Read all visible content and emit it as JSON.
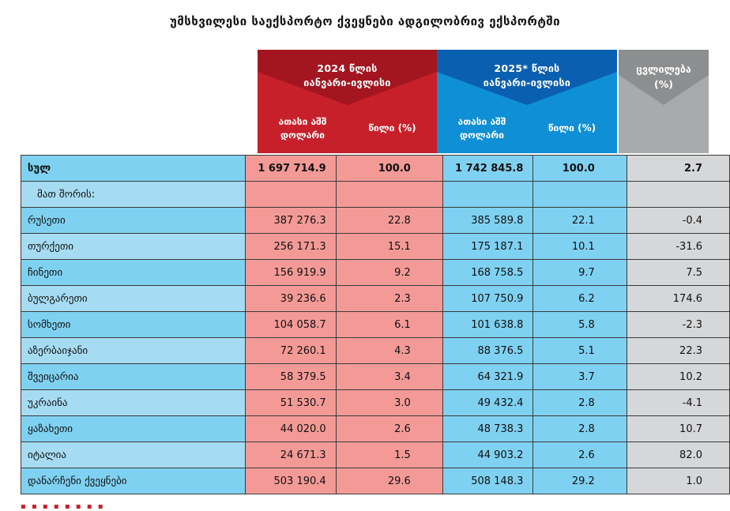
{
  "title": "უმსხვილესი საექსპორტო ქვეყნები ადგილობრივ ექსპორტში",
  "header": {
    "period_2024": [
      "2024 წლის",
      "იანვარი-ივლისი"
    ],
    "period_2025": [
      "2025* წლის",
      "იანვარი-ივლისი"
    ],
    "value_label": [
      "ათასი აშშ",
      "დოლარი"
    ],
    "share_label": "წილი (%)",
    "change_label": [
      "ცვლილება",
      "(%)"
    ]
  },
  "colors": {
    "red_header": "#c8202a",
    "blue_header": "#0f8fd6",
    "gray_header": "#a9aaac",
    "red_cells": "#f39a97",
    "blue_cells": "#7fd1f1",
    "gray_cells": "#d6d7d9"
  },
  "rows": [
    {
      "name": "სულ",
      "v2024": "1 697 714.9",
      "s2024": "100.0",
      "v2025": "1 742 845.8",
      "s2025": "100.0",
      "change": "2.7"
    },
    {
      "name": "მათ შორის:",
      "v2024": "",
      "s2024": "",
      "v2025": "",
      "s2025": "",
      "change": ""
    },
    {
      "name": "რუსეთი",
      "v2024": "387 276.3",
      "s2024": "22.8",
      "v2025": "385 589.8",
      "s2025": "22.1",
      "change": "-0.4"
    },
    {
      "name": "თურქეთი",
      "v2024": "256 171.3",
      "s2024": "15.1",
      "v2025": "175 187.1",
      "s2025": "10.1",
      "change": "-31.6"
    },
    {
      "name": "ჩინეთი",
      "v2024": "156 919.9",
      "s2024": "9.2",
      "v2025": "168 758.5",
      "s2025": "9.7",
      "change": "7.5"
    },
    {
      "name": "ბულგარეთი",
      "v2024": "39 236.6",
      "s2024": "2.3",
      "v2025": "107 750.9",
      "s2025": "6.2",
      "change": "174.6"
    },
    {
      "name": "სომხეთი",
      "v2024": "104 058.7",
      "s2024": "6.1",
      "v2025": "101 638.8",
      "s2025": "5.8",
      "change": "-2.3"
    },
    {
      "name": "აზერბაიჯანი",
      "v2024": "72 260.1",
      "s2024": "4.3",
      "v2025": "88 376.5",
      "s2025": "5.1",
      "change": "22.3"
    },
    {
      "name": "შვეიცარია",
      "v2024": "58 379.5",
      "s2024": "3.4",
      "v2025": "64 321.9",
      "s2025": "3.7",
      "change": "10.2"
    },
    {
      "name": "უკრაინა",
      "v2024": "51 530.7",
      "s2024": "3.0",
      "v2025": "49 432.4",
      "s2025": "2.8",
      "change": "-4.1"
    },
    {
      "name": "ყაზახეთი",
      "v2024": "44 020.0",
      "s2024": "2.6",
      "v2025": "48 738.3",
      "s2025": "2.8",
      "change": "10.7"
    },
    {
      "name": "იტალია",
      "v2024": "24 671.3",
      "s2024": "1.5",
      "v2025": "44 903.2",
      "s2025": "2.6",
      "change": "82.0"
    },
    {
      "name": "დანარჩენი ქვეყნები",
      "v2024": "503 190.4",
      "s2024": "29.6",
      "v2025": "508 148.3",
      "s2025": "29.2",
      "change": "1.0"
    }
  ]
}
